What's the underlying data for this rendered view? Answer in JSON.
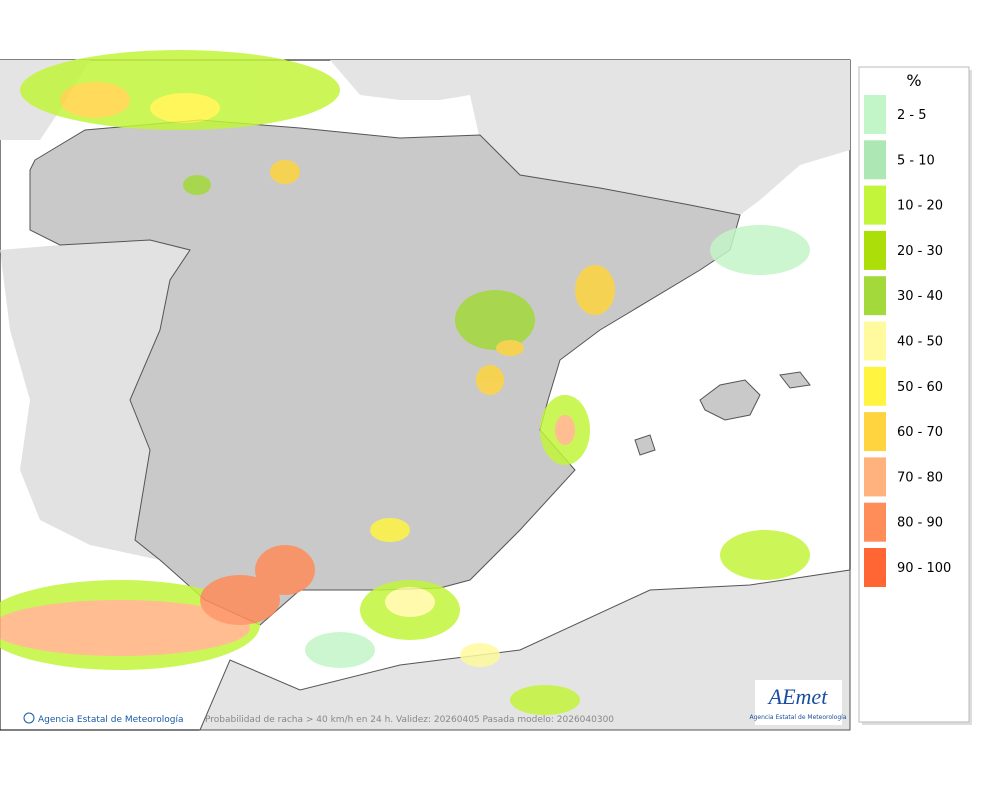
{
  "legend": {
    "title": "%",
    "items": [
      {
        "label": "2 - 5",
        "color": "#c2f5c8"
      },
      {
        "label": "5 - 10",
        "color": "#ade8b4"
      },
      {
        "label": "10 - 20",
        "color": "#c3f53a"
      },
      {
        "label": "20 - 30",
        "color": "#acdf0a"
      },
      {
        "label": "30 - 40",
        "color": "#a3d93a"
      },
      {
        "label": "40 - 50",
        "color": "#fffa9e"
      },
      {
        "label": "50 - 60",
        "color": "#fff540"
      },
      {
        "label": "60 - 70",
        "color": "#ffd43f"
      },
      {
        "label": "70 - 80",
        "color": "#ffb27e"
      },
      {
        "label": "80 - 90",
        "color": "#ff8d5a"
      },
      {
        "label": "90 - 100",
        "color": "#ff6633"
      }
    ]
  },
  "footer": {
    "agency": "Agencia Estatal de Meteorología",
    "caption": "Probabilidad de racha > 40 km/h en 24 h. Validez: 20260405 Pasada modelo: 2026040300"
  },
  "logo": {
    "name": "AEmet",
    "subtitle": "Agencia Estatal de Meteorología"
  }
}
